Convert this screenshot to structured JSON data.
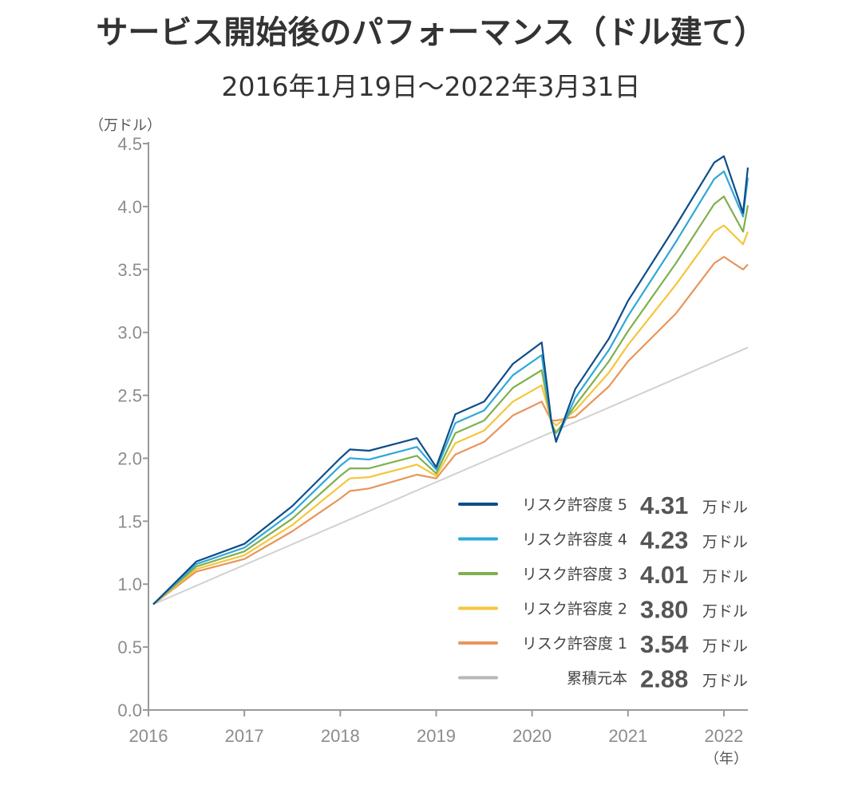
{
  "title": "サービス開始後のパフォーマンス（ドル建て）",
  "subtitle": "2016年1月19日〜2022年3月31日",
  "chart_data": {
    "type": "line",
    "title": "サービス開始後のパフォーマンス（ドル建て）",
    "subtitle": "2016年1月19日〜2022年3月31日",
    "y_unit_label": "（万ドル）",
    "x_unit_label": "（年）",
    "xlim": [
      2016.0,
      2022.25
    ],
    "ylim": [
      0,
      4.5
    ],
    "y_ticks": [
      "0.0",
      "0.5",
      "1.0",
      "1.5",
      "2.0",
      "2.5",
      "3.0",
      "3.5",
      "4.0",
      "4.5"
    ],
    "x_ticks": [
      "2016",
      "2017",
      "2018",
      "2019",
      "2020",
      "2021",
      "2022"
    ],
    "grid": false,
    "legend_position": "bottom-right",
    "series": [
      {
        "name": "リスク許容度 5",
        "label": "リスク許容度",
        "level": "5",
        "final_value": "4.31",
        "unit": "万ドル",
        "color": "#0e4d8a",
        "x": [
          2016.05,
          2016.5,
          2017.0,
          2017.5,
          2018.0,
          2018.1,
          2018.3,
          2018.8,
          2019.0,
          2019.2,
          2019.5,
          2019.8,
          2020.1,
          2020.2,
          2020.25,
          2020.45,
          2020.8,
          2021.0,
          2021.5,
          2021.9,
          2022.0,
          2022.2,
          2022.25
        ],
        "y": [
          0.84,
          1.18,
          1.32,
          1.62,
          2.0,
          2.07,
          2.06,
          2.16,
          1.93,
          2.35,
          2.45,
          2.75,
          2.92,
          2.3,
          2.13,
          2.55,
          2.95,
          3.25,
          3.85,
          4.35,
          4.4,
          3.95,
          4.31
        ]
      },
      {
        "name": "リスク許容度 4",
        "label": "リスク許容度",
        "level": "4",
        "final_value": "4.23",
        "unit": "万ドル",
        "color": "#2fa8d8",
        "x": [
          2016.05,
          2016.5,
          2017.0,
          2017.5,
          2018.0,
          2018.1,
          2018.3,
          2018.8,
          2019.0,
          2019.2,
          2019.5,
          2019.8,
          2020.1,
          2020.2,
          2020.25,
          2020.45,
          2020.8,
          2021.0,
          2021.5,
          2021.9,
          2022.0,
          2022.2,
          2022.25
        ],
        "y": [
          0.84,
          1.16,
          1.29,
          1.57,
          1.94,
          2.0,
          1.99,
          2.09,
          1.91,
          2.28,
          2.38,
          2.66,
          2.82,
          2.28,
          2.14,
          2.48,
          2.86,
          3.13,
          3.72,
          4.22,
          4.28,
          3.92,
          4.23
        ]
      },
      {
        "name": "リスク許容度 3",
        "label": "リスク許容度",
        "level": "3",
        "final_value": "4.01",
        "unit": "万ドル",
        "color": "#7fb04e",
        "x": [
          2016.05,
          2016.5,
          2017.0,
          2017.5,
          2018.0,
          2018.1,
          2018.3,
          2018.8,
          2019.0,
          2019.2,
          2019.5,
          2019.8,
          2020.1,
          2020.2,
          2020.25,
          2020.45,
          2020.8,
          2021.0,
          2021.5,
          2021.9,
          2022.0,
          2022.2,
          2022.25
        ],
        "y": [
          0.84,
          1.14,
          1.26,
          1.52,
          1.86,
          1.92,
          1.92,
          2.02,
          1.88,
          2.2,
          2.3,
          2.56,
          2.7,
          2.28,
          2.2,
          2.42,
          2.77,
          3.01,
          3.55,
          4.02,
          4.08,
          3.8,
          4.01
        ]
      },
      {
        "name": "リスク許容度 2",
        "label": "リスク許容度",
        "level": "2",
        "final_value": "3.80",
        "unit": "万ドル",
        "color": "#f5c53c",
        "x": [
          2016.05,
          2016.5,
          2017.0,
          2017.5,
          2018.0,
          2018.1,
          2018.3,
          2018.8,
          2019.0,
          2019.2,
          2019.5,
          2019.8,
          2020.1,
          2020.2,
          2020.25,
          2020.45,
          2020.8,
          2021.0,
          2021.5,
          2021.9,
          2022.0,
          2022.2,
          2022.25
        ],
        "y": [
          0.84,
          1.12,
          1.23,
          1.47,
          1.78,
          1.84,
          1.85,
          1.95,
          1.86,
          2.12,
          2.22,
          2.45,
          2.58,
          2.3,
          2.26,
          2.38,
          2.68,
          2.9,
          3.38,
          3.8,
          3.85,
          3.7,
          3.8
        ]
      },
      {
        "name": "リスク許容度 1",
        "label": "リスク許容度",
        "level": "1",
        "final_value": "3.54",
        "unit": "万ドル",
        "color": "#e8955a",
        "x": [
          2016.05,
          2016.5,
          2017.0,
          2017.5,
          2018.0,
          2018.1,
          2018.3,
          2018.8,
          2019.0,
          2019.2,
          2019.5,
          2019.8,
          2020.1,
          2020.2,
          2020.25,
          2020.45,
          2020.8,
          2021.0,
          2021.5,
          2021.9,
          2022.0,
          2022.2,
          2022.25
        ],
        "y": [
          0.84,
          1.1,
          1.2,
          1.42,
          1.68,
          1.74,
          1.76,
          1.87,
          1.84,
          2.03,
          2.13,
          2.34,
          2.45,
          2.3,
          2.3,
          2.33,
          2.57,
          2.77,
          3.15,
          3.55,
          3.6,
          3.5,
          3.54
        ]
      },
      {
        "name": "累積元本",
        "label": "累積元本",
        "level": "",
        "final_value": "2.88",
        "unit": "万ドル",
        "color": "#d0d0d0",
        "x": [
          2016.05,
          2022.25
        ],
        "y": [
          0.84,
          2.88
        ]
      }
    ]
  }
}
